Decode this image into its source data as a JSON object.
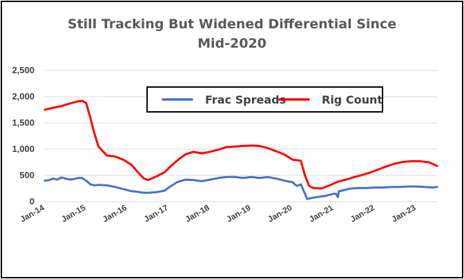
{
  "chart_data": {
    "type": "line",
    "title_lines": [
      "Still Tracking But Widened Differential Since",
      "Mid-2020"
    ],
    "x_tick_labels": [
      "Jan-14",
      "Jan-15",
      "Jan-16",
      "Jan-17",
      "Jan-18",
      "Jan-19",
      "Jan-20",
      "Jan-21",
      "Jan-22",
      "Jan-23"
    ],
    "y_tick_labels": [
      "0",
      "500",
      "1,000",
      "1,500",
      "2,000",
      "2,500"
    ],
    "ylim": [
      0,
      2500
    ],
    "grid": true,
    "legend_position": "top-center",
    "series": [
      {
        "name": "Frac Spreads",
        "color": "#4472C4",
        "x": [
          2014.0,
          2014.1,
          2014.2,
          2014.3,
          2014.4,
          2014.5,
          2014.6,
          2014.7,
          2014.8,
          2014.9,
          2015.0,
          2015.1,
          2015.2,
          2015.3,
          2015.5,
          2015.7,
          2015.9,
          2016.1,
          2016.3,
          2016.4,
          2016.5,
          2016.7,
          2016.9,
          2017.0,
          2017.2,
          2017.4,
          2017.6,
          2017.8,
          2018.0,
          2018.2,
          2018.4,
          2018.6,
          2018.8,
          2019.0,
          2019.2,
          2019.4,
          2019.6,
          2019.8,
          2020.0,
          2020.1,
          2020.2,
          2020.3,
          2020.35,
          2020.4,
          2020.6,
          2020.8,
          2021.0,
          2021.05,
          2021.1,
          2021.12,
          2021.2,
          2021.4,
          2021.6,
          2021.8,
          2022.0,
          2022.2,
          2022.4,
          2022.6,
          2022.8,
          2023.0,
          2023.2,
          2023.4,
          2023.5
        ],
        "y": [
          400,
          410,
          440,
          420,
          460,
          440,
          420,
          430,
          450,
          450,
          400,
          330,
          310,
          320,
          310,
          280,
          240,
          200,
          180,
          170,
          170,
          180,
          210,
          270,
          370,
          420,
          410,
          390,
          420,
          450,
          470,
          470,
          450,
          470,
          450,
          470,
          440,
          400,
          370,
          300,
          330,
          150,
          50,
          60,
          90,
          110,
          150,
          150,
          90,
          200,
          210,
          250,
          260,
          260,
          270,
          270,
          280,
          280,
          290,
          290,
          280,
          270,
          280
        ]
      },
      {
        "name": "Rig Count",
        "color": "#FF0000",
        "x": [
          2014.0,
          2014.2,
          2014.4,
          2014.6,
          2014.8,
          2014.9,
          2015.0,
          2015.1,
          2015.2,
          2015.3,
          2015.5,
          2015.7,
          2015.9,
          2016.1,
          2016.3,
          2016.4,
          2016.5,
          2016.7,
          2016.9,
          2017.0,
          2017.2,
          2017.4,
          2017.6,
          2017.8,
          2018.0,
          2018.2,
          2018.4,
          2018.6,
          2018.8,
          2019.0,
          2019.2,
          2019.4,
          2019.6,
          2019.8,
          2020.0,
          2020.1,
          2020.2,
          2020.3,
          2020.4,
          2020.5,
          2020.7,
          2020.9,
          2021.1,
          2021.3,
          2021.5,
          2021.7,
          2021.9,
          2022.1,
          2022.3,
          2022.5,
          2022.7,
          2022.9,
          2023.1,
          2023.3,
          2023.5
        ],
        "y": [
          1750,
          1790,
          1820,
          1870,
          1910,
          1920,
          1880,
          1600,
          1300,
          1050,
          880,
          860,
          800,
          700,
          520,
          440,
          410,
          480,
          560,
          640,
          780,
          900,
          950,
          920,
          950,
          990,
          1040,
          1050,
          1060,
          1070,
          1060,
          1020,
          960,
          900,
          800,
          790,
          780,
          500,
          300,
          260,
          250,
          310,
          380,
          420,
          470,
          510,
          560,
          620,
          680,
          730,
          760,
          770,
          770,
          750,
          680
        ]
      }
    ]
  }
}
